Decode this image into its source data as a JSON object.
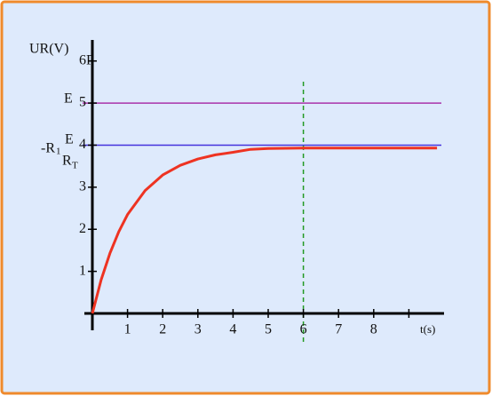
{
  "chart_data": {
    "type": "line",
    "y_label": "UR(V)",
    "x_label": "t(s)",
    "annotation": "P",
    "x": [
      0,
      0.25,
      0.5,
      0.75,
      1,
      1.5,
      2,
      2.5,
      3,
      3.5,
      4,
      4.5,
      5,
      6,
      7,
      8,
      9,
      9.8
    ],
    "series": [
      {
        "color": "#ee3322",
        "values": [
          0,
          0.8,
          1.43,
          1.94,
          2.35,
          2.92,
          3.29,
          3.52,
          3.67,
          3.77,
          3.83,
          3.9,
          3.92,
          3.93,
          3.93,
          3.93,
          3.93,
          3.93
        ]
      }
    ],
    "xlim": [
      0,
      10
    ],
    "ylim": [
      0,
      6.5
    ],
    "xticks": [
      1,
      2,
      3,
      4,
      5,
      6,
      7,
      8,
      {
        "value": 9,
        "label": null
      }
    ],
    "yticks": [
      1,
      2,
      3,
      4,
      5,
      6
    ],
    "hlines": [
      {
        "value": 5,
        "color": "#aa33aa",
        "label": "E"
      },
      {
        "value": 4,
        "color": "#4433dd",
        "label_parts": [
          "-R",
          "1",
          "E",
          "R",
          "T"
        ]
      }
    ],
    "vline": {
      "value": 6,
      "color": "#229922"
    }
  }
}
